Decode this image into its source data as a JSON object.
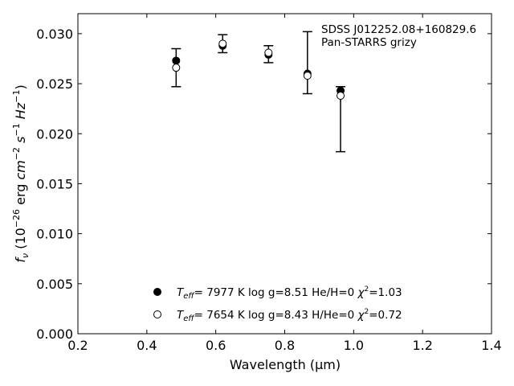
{
  "chart_data": {
    "type": "scatter",
    "title": "",
    "xlabel": "Wavelength (μm)",
    "ylabel": "f_ν (10^-26 erg cm^-2 s^-1 Hz^-1)",
    "xlim": [
      0.2,
      1.4
    ],
    "ylim": [
      0.0,
      0.032
    ],
    "xticks": [
      "0.2",
      "0.4",
      "0.6",
      "0.8",
      "1.0",
      "1.2",
      "1.4"
    ],
    "yticks": [
      "0.000",
      "0.005",
      "0.010",
      "0.015",
      "0.020",
      "0.025",
      "0.030"
    ],
    "annotation": {
      "line1": "SDSS J012252.08+160829.6",
      "line2": "Pan-STARRS grizy"
    },
    "observed": {
      "x": [
        0.485,
        0.62,
        0.753,
        0.866,
        0.962
      ],
      "y": [
        0.0266,
        0.029,
        0.028,
        0.0261,
        0.0244
      ],
      "yerr_low": [
        0.0247,
        0.0281,
        0.0271,
        0.024,
        0.0182
      ],
      "yerr_high": [
        0.0285,
        0.0299,
        0.0288,
        0.0302,
        0.0247
      ]
    },
    "series": [
      {
        "marker": "filled",
        "label": {
          "teff": "7977 K",
          "logg": "log g=8.51",
          "comp": "He/H=0",
          "chi2": "=1.03"
        },
        "x": [
          0.485,
          0.62,
          0.753,
          0.866,
          0.962
        ],
        "y": [
          0.0273,
          0.0288,
          0.0279,
          0.026,
          0.0243
        ]
      },
      {
        "marker": "open",
        "label": {
          "teff": "7654 K",
          "logg": "log g=8.43",
          "comp": "H/He=0",
          "chi2": "=0.72"
        },
        "x": [
          0.485,
          0.62,
          0.753,
          0.866,
          0.962
        ],
        "y": [
          0.0266,
          0.029,
          0.0281,
          0.0258,
          0.0238
        ]
      }
    ]
  }
}
